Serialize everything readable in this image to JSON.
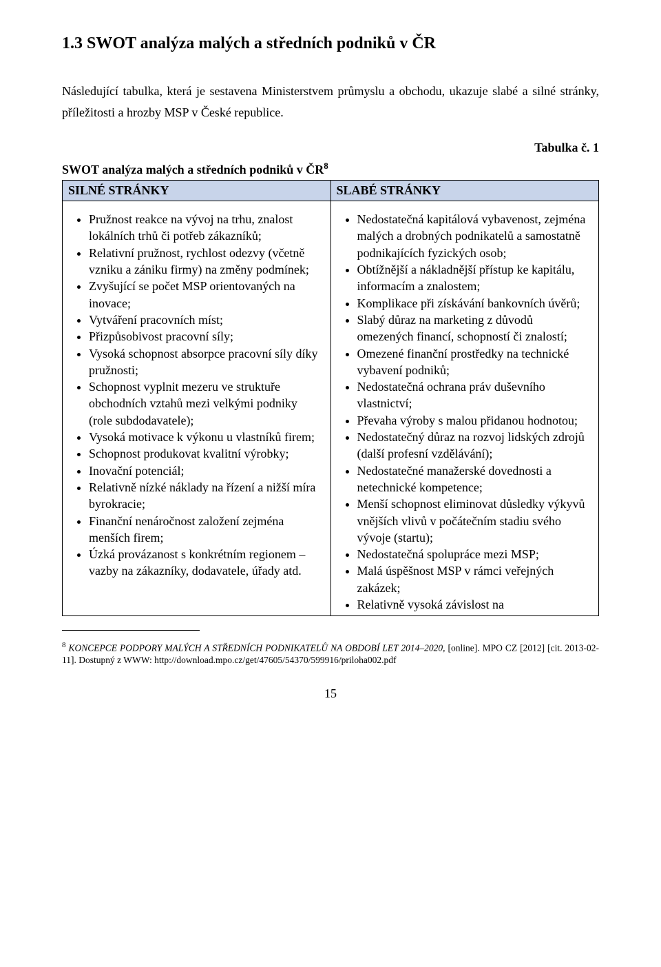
{
  "typography": {
    "body_font": "Times New Roman",
    "heading_fontsize_pt": 18,
    "body_fontsize_pt": 13,
    "footnote_fontsize_pt": 10,
    "line_height": 1.7
  },
  "colors": {
    "background": "#ffffff",
    "text": "#000000",
    "table_header_bg": "#c8d4ea",
    "table_border": "#000000"
  },
  "page_number": "15",
  "heading": "1.3 SWOT analýza malých a středních podniků v ČR",
  "intro": "Následující tabulka, která je sestavena Ministerstvem průmyslu a obchodu, ukazuje slabé a silné stránky, příležitosti a hrozby MSP v České republice.",
  "table_label": "Tabulka č. 1",
  "swot_caption": "SWOT analýza malých a středních podniků v ČR",
  "swot_caption_sup": "8",
  "swot_table": {
    "type": "table",
    "columns": [
      "SILNÉ STRÁNKY",
      "SLABÉ STRÁNKY"
    ],
    "column_widths_pct": [
      50,
      50
    ],
    "header_bg": "#c8d4ea",
    "border_color": "#000000",
    "strengths": [
      "Pružnost reakce na vývoj na trhu, znalost lokálních trhů či potřeb zákazníků;",
      "Relativní pružnost, rychlost odezvy (včetně vzniku a zániku firmy) na změny podmínek;",
      "Zvyšující se počet MSP orientovaných na inovace;",
      "Vytváření pracovních míst;",
      "Přizpůsobivost pracovní síly;",
      "Vysoká schopnost absorpce pracovní síly díky pružnosti;",
      "Schopnost vyplnit mezeru ve struktuře obchodních vztahů mezi velkými podniky (role subdodavatele);",
      "Vysoká motivace k výkonu u vlastníků firem;",
      "Schopnost produkovat kvalitní výrobky;",
      "Inovační potenciál;",
      "Relativně nízké náklady na řízení a nižší míra byrokracie;",
      "Finanční nenáročnost založení zejména menších firem;",
      "Úzká provázanost s konkrétním regionem – vazby na zákazníky, dodavatele, úřady atd."
    ],
    "weaknesses": [
      "Nedostatečná kapitálová vybavenost, zejména malých a drobných podnikatelů a samostatně podnikajících fyzických osob;",
      "Obtížnější a nákladnější přístup ke kapitálu, informacím a znalostem;",
      "Komplikace při získávání bankovních úvěrů;",
      "Slabý důraz na marketing z důvodů omezených financí, schopností či znalostí;",
      "Omezené finanční prostředky na technické vybavení podniků;",
      "Nedostatečná ochrana práv duševního vlastnictví;",
      "Převaha výroby s malou přidanou hodnotou;",
      "Nedostatečný důraz na rozvoj lidských zdrojů (další profesní vzdělávání);",
      "Nedostatečné manažerské dovednosti a netechnické kompetence;",
      "Menší schopnost eliminovat důsledky výkyvů vnějších vlivů v počátečním stadiu svého vývoje (startu);",
      "Nedostatečná spolupráce mezi MSP;",
      "Malá úspěšnost MSP v rámci veřejných zakázek;",
      "Relativně vysoká závislost na"
    ]
  },
  "footnote": {
    "num": "8",
    "italic_part": "KONCEPCE PODPORY MALÝCH A STŘEDNÍCH PODNIKATELŮ NA OBDOBÍ LET 2014–2020,",
    "rest": " [online]. MPO CZ [2012] [cit. 2013-02-11]. Dostupný z WWW: http://download.mpo.cz/get/47605/54370/599916/priloha002.pdf"
  }
}
